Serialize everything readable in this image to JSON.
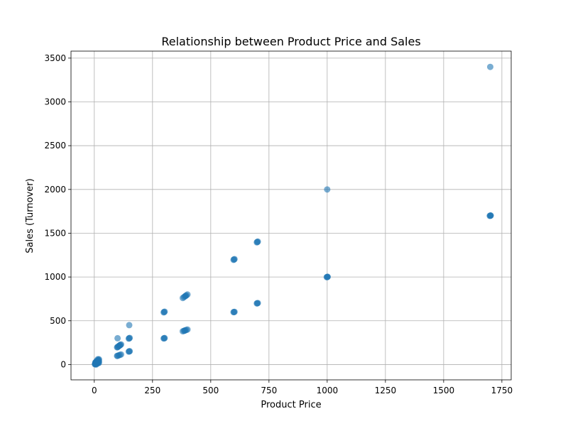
{
  "chart_data": {
    "type": "scatter",
    "title": "Relationship between Product Price and Sales",
    "xlabel": "Product Price",
    "ylabel": "Sales (Turnover)",
    "xlim": [
      -100,
      1790
    ],
    "ylim": [
      -175,
      3580
    ],
    "xticks": [
      0,
      250,
      500,
      750,
      1000,
      1250,
      1500,
      1750
    ],
    "yticks": [
      0,
      500,
      1000,
      1500,
      2000,
      2500,
      3000,
      3500
    ],
    "grid": true,
    "marker_color": "#1f77b4",
    "marker_alpha": 0.6,
    "points": [
      [
        5,
        5
      ],
      [
        5,
        10
      ],
      [
        5,
        15
      ],
      [
        5,
        20
      ],
      [
        5,
        25
      ],
      [
        8,
        0
      ],
      [
        8,
        8
      ],
      [
        8,
        16
      ],
      [
        8,
        24
      ],
      [
        8,
        32
      ],
      [
        10,
        10
      ],
      [
        10,
        20
      ],
      [
        10,
        30
      ],
      [
        10,
        40
      ],
      [
        12,
        12
      ],
      [
        12,
        24
      ],
      [
        12,
        36
      ],
      [
        15,
        15
      ],
      [
        15,
        30
      ],
      [
        15,
        45
      ],
      [
        15,
        60
      ],
      [
        18,
        18
      ],
      [
        18,
        36
      ],
      [
        18,
        54
      ],
      [
        20,
        20
      ],
      [
        20,
        40
      ],
      [
        20,
        60
      ],
      [
        3,
        3
      ],
      [
        3,
        6
      ],
      [
        6,
        12
      ],
      [
        100,
        100
      ],
      [
        100,
        200
      ],
      [
        100,
        300
      ],
      [
        105,
        105
      ],
      [
        105,
        210
      ],
      [
        110,
        110
      ],
      [
        110,
        220
      ],
      [
        115,
        115
      ],
      [
        115,
        230
      ],
      [
        98,
        98
      ],
      [
        98,
        196
      ],
      [
        102,
        204
      ],
      [
        108,
        216
      ],
      [
        112,
        224
      ],
      [
        150,
        150
      ],
      [
        150,
        300
      ],
      [
        150,
        450
      ],
      [
        148,
        148
      ],
      [
        148,
        296
      ],
      [
        152,
        152
      ],
      [
        152,
        304
      ],
      [
        300,
        300
      ],
      [
        300,
        600
      ],
      [
        302,
        302
      ],
      [
        302,
        604
      ],
      [
        298,
        298
      ],
      [
        298,
        596
      ],
      [
        380,
        380
      ],
      [
        380,
        760
      ],
      [
        385,
        385
      ],
      [
        385,
        770
      ],
      [
        390,
        390
      ],
      [
        390,
        780
      ],
      [
        395,
        395
      ],
      [
        395,
        790
      ],
      [
        400,
        400
      ],
      [
        400,
        800
      ],
      [
        388,
        388
      ],
      [
        392,
        784
      ],
      [
        600,
        600
      ],
      [
        600,
        1200
      ],
      [
        602,
        602
      ],
      [
        602,
        1204
      ],
      [
        598,
        598
      ],
      [
        598,
        1196
      ],
      [
        700,
        700
      ],
      [
        700,
        1400
      ],
      [
        702,
        702
      ],
      [
        702,
        1404
      ],
      [
        698,
        698
      ],
      [
        698,
        1396
      ],
      [
        1000,
        1000
      ],
      [
        1000,
        2000
      ],
      [
        1002,
        1002
      ],
      [
        998,
        998
      ],
      [
        1001,
        1001
      ],
      [
        1700,
        1700
      ],
      [
        1700,
        3400
      ],
      [
        1702,
        1702
      ],
      [
        1698,
        1698
      ],
      [
        1701,
        1701
      ]
    ]
  }
}
